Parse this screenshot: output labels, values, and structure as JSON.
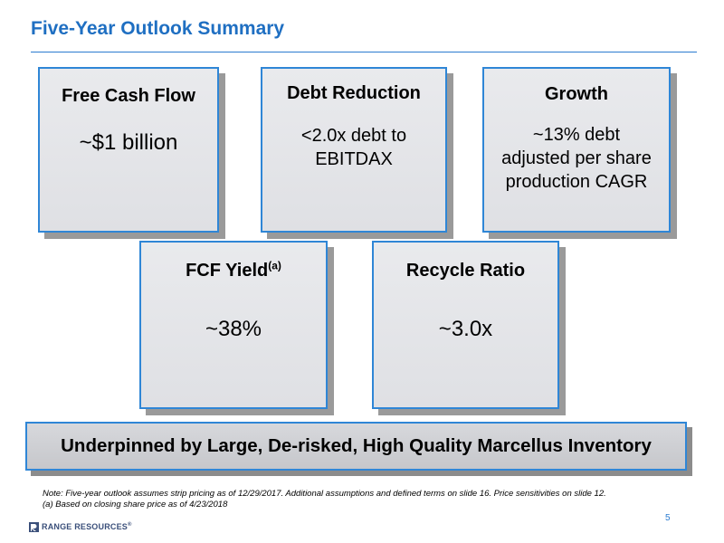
{
  "header": {
    "title": "Five-Year Outlook Summary"
  },
  "cards": [
    {
      "title": "Free Cash Flow",
      "title_sup": "",
      "value": "~$1 billion"
    },
    {
      "title": "Debt Reduction",
      "title_sup": "",
      "value": "<2.0x debt to\nEBITDAX"
    },
    {
      "title": "Growth",
      "title_sup": "",
      "value": "~13% debt\nadjusted per share\nproduction CAGR"
    },
    {
      "title": "FCF Yield",
      "title_sup": "(a)",
      "value": "~38%"
    },
    {
      "title": "Recycle Ratio",
      "title_sup": "",
      "value": "~3.0x"
    }
  ],
  "banner": {
    "text": "Underpinned by Large, De-risked, High Quality Marcellus Inventory"
  },
  "footnotes": {
    "note": "Note: Five-year outlook assumes strip pricing as of 12/29/2017.  Additional assumptions and defined terms on slide 16.  Price sensitivities on slide 12.",
    "a": "(a) Based on closing share price as of 4/23/2018"
  },
  "page_number": "5",
  "logo": {
    "text": "RANGE RESOURCES",
    "trademark": "®",
    "icon": "range-resources-logo-icon"
  },
  "colors": {
    "title": "#1f6fc2",
    "card_border": "#2f86d6",
    "card_fill": "#e3e4e8",
    "shadow": "#9a9a9a"
  }
}
